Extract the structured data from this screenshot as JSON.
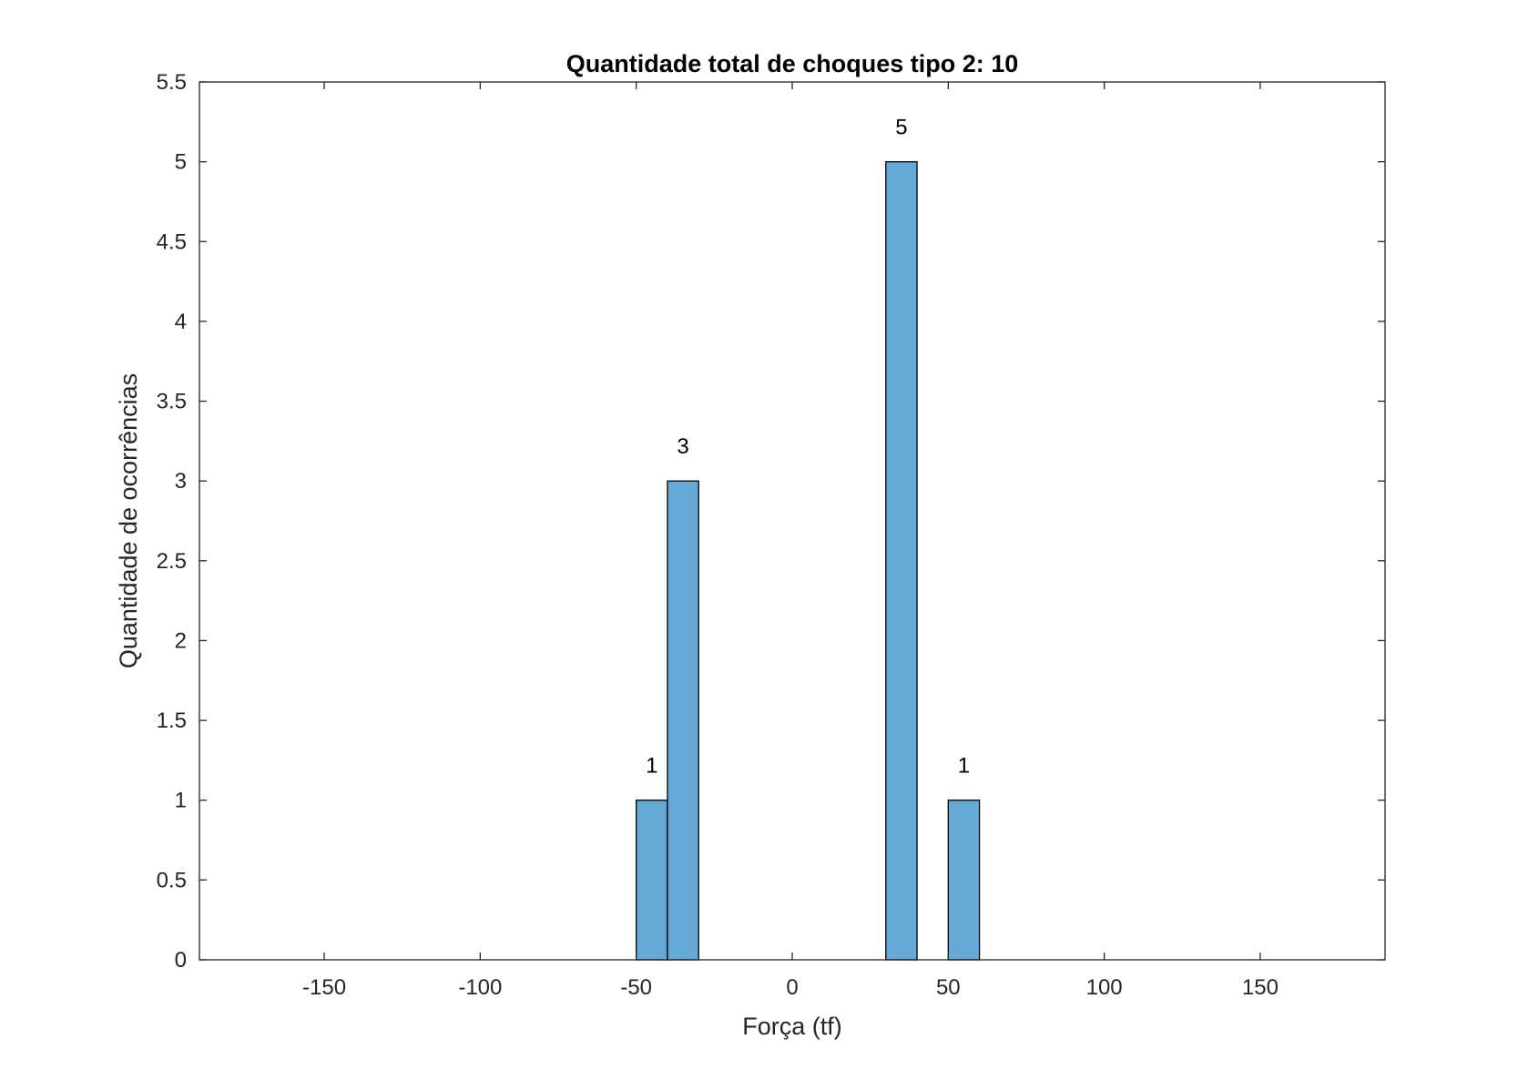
{
  "chart_data": {
    "type": "bar",
    "title": "Quantidade total de choques tipo 2: 10",
    "xlabel": "Força (tf)",
    "ylabel": "Quantidade de ocorrências",
    "xlim": [
      -190,
      190
    ],
    "ylim": [
      0,
      5.5
    ],
    "xticks": [
      -150,
      -100,
      -50,
      0,
      50,
      100,
      150
    ],
    "xtick_labels": [
      "-150",
      "-100",
      "-50",
      "0",
      "50",
      "100",
      "150"
    ],
    "yticks": [
      0,
      0.5,
      1,
      1.5,
      2,
      2.5,
      3,
      3.5,
      4,
      4.5,
      5,
      5.5
    ],
    "ytick_labels": [
      "0",
      "0.5",
      "1",
      "1.5",
      "2",
      "2.5",
      "3",
      "3.5",
      "4",
      "4.5",
      "5",
      "5.5"
    ],
    "bin_width": 10,
    "bins": [
      {
        "x_start": -50,
        "x_end": -40,
        "value": 1,
        "label": "1"
      },
      {
        "x_start": -40,
        "x_end": -30,
        "value": 3,
        "label": "3"
      },
      {
        "x_start": 30,
        "x_end": 40,
        "value": 5,
        "label": "5"
      },
      {
        "x_start": 50,
        "x_end": 60,
        "value": 1,
        "label": "1"
      }
    ],
    "bar_color": "#65A9D7",
    "bar_edge_color": "#000000",
    "grid": false,
    "box": true
  }
}
